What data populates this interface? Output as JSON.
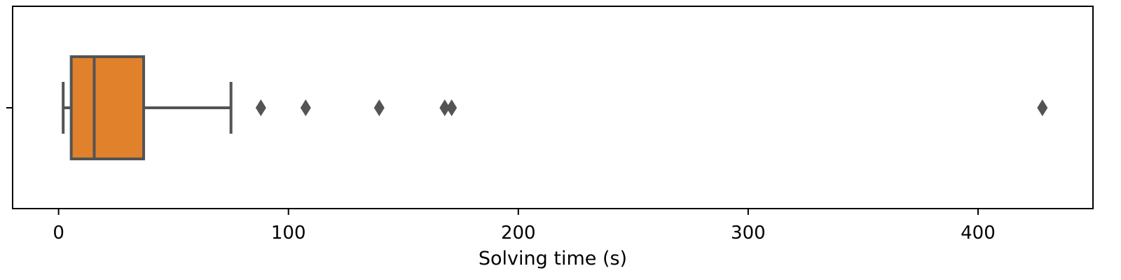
{
  "chart_data": {
    "type": "box",
    "orientation": "horizontal",
    "title": "",
    "xlabel": "Solving time (s)",
    "ylabel": "",
    "xlim": [
      -20,
      450
    ],
    "xticks": [
      0,
      100,
      200,
      300,
      400
    ],
    "xtick_labels": [
      "0",
      "100",
      "200",
      "300",
      "400"
    ],
    "grid": false,
    "legend": "none",
    "box": {
      "whisker_low": 2,
      "q1": 5.5,
      "median": 15.5,
      "q3": 37,
      "whisker_high": 75
    },
    "outliers": [
      88,
      107.5,
      139.5,
      168,
      171,
      428
    ],
    "colors": {
      "box_fill": "#e1812c",
      "line": "#545454",
      "outlier": "#545454",
      "frame": "#000000"
    }
  }
}
